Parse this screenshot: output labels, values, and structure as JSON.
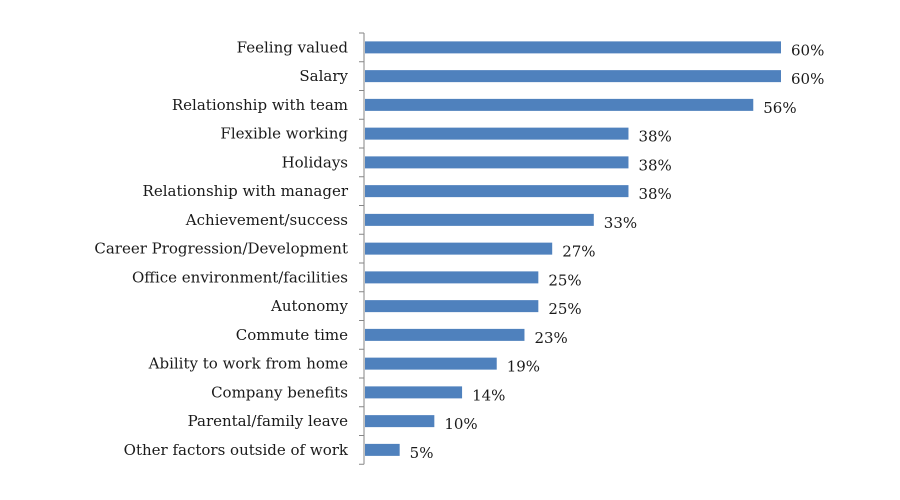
{
  "chart_data": {
    "type": "bar",
    "orientation": "horizontal",
    "categories": [
      "Feeling valued",
      "Salary",
      "Relationship with team",
      "Flexible working",
      "Holidays",
      "Relationship with manager",
      "Achievement/success",
      "Career Progression/Development",
      "Office environment/facilities",
      "Autonomy",
      "Commute time",
      "Ability to work from home",
      "Company benefits",
      "Parental/family leave",
      "Other factors outside of work"
    ],
    "values": [
      60,
      60,
      56,
      38,
      38,
      38,
      33,
      27,
      25,
      25,
      23,
      19,
      14,
      10,
      5
    ],
    "value_labels": [
      "60%",
      "60%",
      "56%",
      "38%",
      "38%",
      "38%",
      "33%",
      "27%",
      "25%",
      "25%",
      "23%",
      "19%",
      "14%",
      "10%",
      "5%"
    ],
    "xlim": [
      0,
      60
    ],
    "bar_color": "#4f81bd",
    "axis_color": "#868686",
    "title": "",
    "xlabel": "",
    "ylabel": "",
    "grid": false,
    "legend": "none"
  }
}
